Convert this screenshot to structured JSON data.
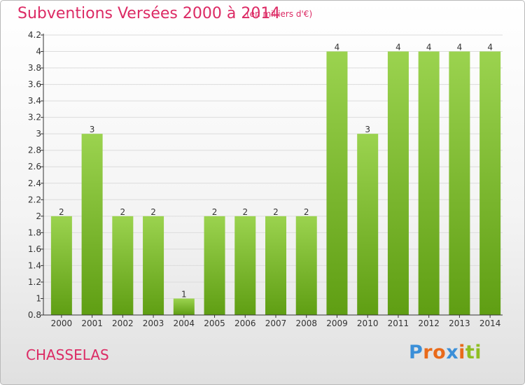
{
  "header": {
    "title": "Subventions Versées 2000 à 2014",
    "unit": "(en milliers d'€)"
  },
  "footer": {
    "commune": "CHASSELAS",
    "logo_letters": [
      "P",
      "r",
      "o",
      "x",
      "i",
      "t",
      "i"
    ]
  },
  "colors": {
    "title": "#dc2a64",
    "bar_top": "#9bd34f",
    "bar_bottom": "#5f9e13",
    "grid": "#dcdcdc",
    "axis": "#333333",
    "logo": [
      "#3b8fd8",
      "#e96a1a",
      "#e96a1a",
      "#3b8fd8",
      "#e96a1a",
      "#8fbe22",
      "#8fbe22"
    ]
  },
  "chart_data": {
    "type": "bar",
    "categories": [
      "2000",
      "2001",
      "2002",
      "2003",
      "2004",
      "2005",
      "2006",
      "2007",
      "2008",
      "2009",
      "2010",
      "2011",
      "2012",
      "2013",
      "2014"
    ],
    "values": [
      2,
      3,
      2,
      2,
      1,
      2,
      2,
      2,
      2,
      4,
      3,
      4,
      4,
      4,
      4
    ],
    "data_labels": [
      "2",
      "3",
      "2",
      "2",
      "1",
      "2",
      "2",
      "2",
      "2",
      "4",
      "3",
      "4",
      "4",
      "4",
      "4"
    ],
    "title": "Subventions Versées 2000 à 2014",
    "ylim": [
      0.8,
      4.2
    ],
    "yticks": [
      "0.8",
      "1",
      "1.2",
      "1.4",
      "1.6",
      "1.8",
      "2",
      "2.2",
      "2.4",
      "2.6",
      "2.8",
      "3",
      "3.2",
      "3.4",
      "3.6",
      "3.8",
      "4",
      "4.2"
    ],
    "ytick_values": [
      0.8,
      1,
      1.2,
      1.4,
      1.6,
      1.8,
      2,
      2.2,
      2.4,
      2.6,
      2.8,
      3,
      3.2,
      3.4,
      3.6,
      3.8,
      4,
      4.2
    ],
    "grid": true,
    "legend": "none"
  }
}
